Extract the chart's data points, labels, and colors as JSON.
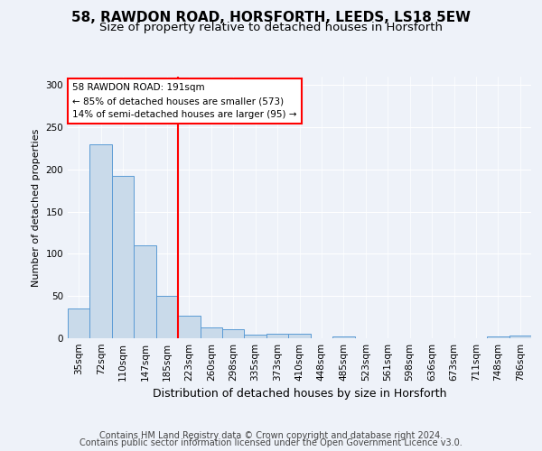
{
  "title1": "58, RAWDON ROAD, HORSFORTH, LEEDS, LS18 5EW",
  "title2": "Size of property relative to detached houses in Horsforth",
  "xlabel": "Distribution of detached houses by size in Horsforth",
  "ylabel": "Number of detached properties",
  "categories": [
    "35sqm",
    "72sqm",
    "110sqm",
    "147sqm",
    "185sqm",
    "223sqm",
    "260sqm",
    "298sqm",
    "335sqm",
    "373sqm",
    "410sqm",
    "448sqm",
    "485sqm",
    "523sqm",
    "561sqm",
    "598sqm",
    "636sqm",
    "673sqm",
    "711sqm",
    "748sqm",
    "786sqm"
  ],
  "values": [
    35,
    230,
    192,
    110,
    50,
    27,
    13,
    11,
    4,
    5,
    5,
    0,
    2,
    0,
    0,
    0,
    0,
    0,
    0,
    2,
    3
  ],
  "bar_color": "#c9daea",
  "bar_edge_color": "#5b9bd5",
  "vline_x": 4.5,
  "vline_color": "red",
  "annotation_lines": [
    "58 RAWDON ROAD: 191sqm",
    "← 85% of detached houses are smaller (573)",
    "14% of semi-detached houses are larger (95) →"
  ],
  "footer_line1": "Contains HM Land Registry data © Crown copyright and database right 2024.",
  "footer_line2": "Contains public sector information licensed under the Open Government Licence v3.0.",
  "ylim": [
    0,
    310
  ],
  "yticks": [
    0,
    50,
    100,
    150,
    200,
    250,
    300
  ],
  "bg_color": "#eef2f9",
  "plot_bg_color": "#eef2f9",
  "title1_fontsize": 11,
  "title2_fontsize": 9.5,
  "xlabel_fontsize": 9,
  "ylabel_fontsize": 8,
  "tick_fontsize": 7.5,
  "footer_fontsize": 7,
  "ann_fontsize": 7.5
}
